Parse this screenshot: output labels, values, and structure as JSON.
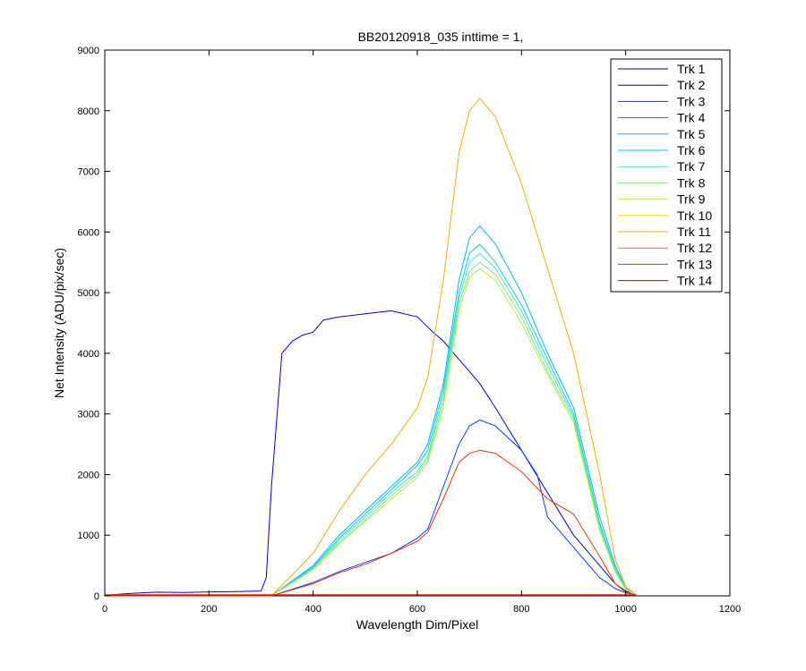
{
  "chart_data": {
    "type": "line",
    "title": "BB20120918_035 inttime = 1,",
    "xlabel": "Wavelength Dim/Pixel",
    "ylabel": "Net Intensity (ADU/pix/sec)",
    "xlim": [
      0,
      1200
    ],
    "ylim": [
      0,
      9000
    ],
    "xticks": [
      0,
      200,
      400,
      600,
      800,
      1000,
      1200
    ],
    "yticks": [
      0,
      1000,
      2000,
      3000,
      4000,
      5000,
      6000,
      7000,
      8000,
      9000
    ],
    "grid": false,
    "legend_position": "top-right",
    "series": [
      {
        "name": "Trk 1",
        "color": "#00008f",
        "x": [
          0,
          1020
        ],
        "y": [
          5,
          5
        ]
      },
      {
        "name": "Trk 2",
        "color": "#0000c8",
        "x": [
          0,
          50,
          100,
          150,
          200,
          250,
          300,
          310,
          320,
          340,
          360,
          380,
          400,
          420,
          450,
          500,
          550,
          600,
          630,
          650,
          680,
          700,
          720,
          750,
          800,
          850,
          900,
          950,
          980,
          1000,
          1020
        ],
        "y": [
          10,
          40,
          60,
          55,
          65,
          70,
          80,
          300,
          1800,
          4000,
          4200,
          4300,
          4350,
          4550,
          4600,
          4650,
          4700,
          4600,
          4350,
          4200,
          3900,
          3700,
          3500,
          3100,
          2400,
          1700,
          1000,
          500,
          200,
          80,
          20
        ]
      },
      {
        "name": "Trk 3",
        "color": "#0040ff",
        "x": [
          0,
          320,
          400,
          450,
          500,
          550,
          600,
          620,
          650,
          680,
          700,
          720,
          750,
          800,
          830,
          850,
          900,
          950,
          980,
          1000,
          1020
        ],
        "y": [
          0,
          0,
          220,
          400,
          550,
          700,
          950,
          1100,
          1800,
          2500,
          2800,
          2900,
          2800,
          2400,
          2000,
          1300,
          800,
          300,
          120,
          50,
          10
        ]
      },
      {
        "name": "Trk 4",
        "color": "#0080a0",
        "x": [
          0,
          1020
        ],
        "y": [
          8,
          8
        ]
      },
      {
        "name": "Trk 5",
        "color": "#00b4ff",
        "x": [
          0,
          320,
          400,
          450,
          500,
          550,
          600,
          620,
          650,
          680,
          700,
          720,
          750,
          800,
          850,
          900,
          950,
          980,
          1000,
          1020
        ],
        "y": [
          0,
          0,
          500,
          1000,
          1400,
          1800,
          2200,
          2500,
          3500,
          5200,
          5900,
          6100,
          5800,
          5000,
          4000,
          3100,
          1300,
          500,
          150,
          10
        ]
      },
      {
        "name": "Trk 6",
        "color": "#00d0e0",
        "x": [
          0,
          320,
          400,
          450,
          500,
          550,
          600,
          620,
          650,
          680,
          700,
          720,
          750,
          800,
          850,
          900,
          950,
          980,
          1000,
          1020
        ],
        "y": [
          0,
          0,
          480,
          950,
          1350,
          1750,
          2150,
          2400,
          3400,
          5000,
          5650,
          5800,
          5500,
          4800,
          3900,
          3000,
          1200,
          450,
          130,
          10
        ]
      },
      {
        "name": "Trk 7",
        "color": "#40e8c8",
        "x": [
          0,
          320,
          400,
          450,
          500,
          550,
          600,
          620,
          650,
          680,
          700,
          720,
          750,
          800,
          850,
          900,
          950,
          980,
          1000,
          1020
        ],
        "y": [
          0,
          0,
          460,
          920,
          1300,
          1700,
          2050,
          2300,
          3300,
          4900,
          5500,
          5650,
          5400,
          4700,
          3800,
          2950,
          1150,
          420,
          120,
          10
        ]
      },
      {
        "name": "Trk 8",
        "color": "#80e880",
        "x": [
          0,
          320,
          400,
          450,
          500,
          550,
          600,
          620,
          650,
          680,
          700,
          720,
          750,
          800,
          850,
          900,
          950,
          980,
          1000,
          1020
        ],
        "y": [
          0,
          0,
          440,
          880,
          1250,
          1650,
          2000,
          2250,
          3200,
          4800,
          5350,
          5500,
          5300,
          4600,
          3700,
          2900,
          1100,
          400,
          110,
          10
        ]
      },
      {
        "name": "Trk 9",
        "color": "#b4f040",
        "x": [
          0,
          320,
          400,
          450,
          500,
          550,
          600,
          620,
          650,
          680,
          700,
          720,
          750,
          800,
          850,
          900,
          950,
          980,
          1000,
          1020
        ],
        "y": [
          0,
          0,
          430,
          860,
          1220,
          1600,
          1950,
          2200,
          3100,
          4700,
          5250,
          5400,
          5200,
          4500,
          3650,
          2850,
          1080,
          390,
          100,
          10
        ]
      },
      {
        "name": "Trk 10",
        "color": "#e0e000",
        "x": [
          0,
          1020
        ],
        "y": [
          15,
          15
        ]
      },
      {
        "name": "Trk 11",
        "color": "#f0b000",
        "x": [
          0,
          320,
          400,
          450,
          500,
          550,
          600,
          620,
          650,
          680,
          700,
          720,
          750,
          800,
          850,
          900,
          950,
          980,
          1000,
          1020
        ],
        "y": [
          0,
          0,
          700,
          1400,
          2000,
          2500,
          3100,
          3600,
          5200,
          7300,
          8000,
          8200,
          7900,
          6800,
          5400,
          4000,
          2000,
          600,
          150,
          10
        ]
      },
      {
        "name": "Trk 12",
        "color": "#ff6020",
        "x": [
          0,
          1020
        ],
        "y": [
          20,
          20
        ]
      },
      {
        "name": "Trk 13",
        "color": "#f03000",
        "x": [
          0,
          320,
          400,
          450,
          500,
          550,
          600,
          620,
          650,
          680,
          700,
          720,
          750,
          800,
          850,
          900,
          950,
          980,
          1000,
          1020
        ],
        "y": [
          0,
          0,
          200,
          380,
          520,
          700,
          900,
          1050,
          1600,
          2200,
          2350,
          2400,
          2350,
          2050,
          1600,
          1350,
          650,
          200,
          60,
          10
        ]
      },
      {
        "name": "Trk 14",
        "color": "#c00000",
        "x": [
          0,
          1020
        ],
        "y": [
          12,
          12
        ]
      }
    ]
  }
}
